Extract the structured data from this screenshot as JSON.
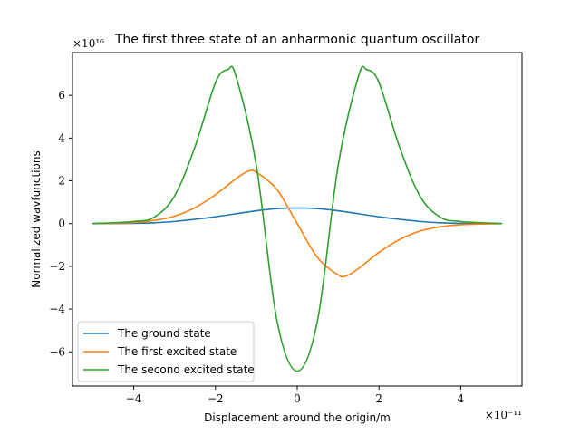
{
  "chart_data": {
    "type": "line",
    "title": "The first three state of an anharmonic quantum oscillator",
    "xlabel": "Displacement around the origin/m",
    "ylabel": "Normalized wavfunctions",
    "x_offset_text": "×10⁻¹¹",
    "y_offset_text": "×10¹⁶",
    "x_scale_note": "x values are in units of 1e-11 m",
    "y_scale_note": "y values are in units of 1e16",
    "xlim": [
      -5.5,
      5.5
    ],
    "ylim": [
      -7.6,
      8.0
    ],
    "xticks": [
      -4,
      -2,
      0,
      2,
      4
    ],
    "yticks": [
      -6,
      -4,
      -2,
      0,
      2,
      4,
      6
    ],
    "xtick_labels": [
      "−4",
      "−2",
      "0",
      "2",
      "4"
    ],
    "ytick_labels": [
      "−6",
      "−4",
      "−2",
      "0",
      "2",
      "4",
      "6"
    ],
    "grid": false,
    "legend_position": "lower-left",
    "series": [
      {
        "name": "The ground state",
        "color": "#1f77b4",
        "x": [
          -5,
          -4,
          -3.5,
          -3,
          -2.5,
          -2,
          -1.5,
          -1,
          -0.5,
          0,
          0.5,
          1,
          1.5,
          2,
          2.5,
          3,
          3.5,
          4,
          5
        ],
        "y": [
          0.0,
          0.01,
          0.04,
          0.1,
          0.2,
          0.32,
          0.46,
          0.6,
          0.7,
          0.73,
          0.7,
          0.6,
          0.46,
          0.32,
          0.2,
          0.1,
          0.04,
          0.01,
          0.0
        ]
      },
      {
        "name": "The first excited state",
        "color": "#ff7f0e",
        "x": [
          -5,
          -4,
          -3.5,
          -3,
          -2.5,
          -2,
          -1.5,
          -1.2,
          -1,
          -0.5,
          0,
          0.5,
          1,
          1.2,
          1.5,
          2,
          2.5,
          3,
          3.5,
          4,
          5
        ],
        "y": [
          0.0,
          0.05,
          0.15,
          0.35,
          0.75,
          1.35,
          2.1,
          2.45,
          2.4,
          1.6,
          0.0,
          -1.6,
          -2.4,
          -2.45,
          -2.1,
          -1.35,
          -0.75,
          -0.35,
          -0.15,
          -0.05,
          0.0
        ]
      },
      {
        "name": "The second excited state",
        "color": "#2ca02c",
        "x": [
          -5,
          -4,
          -3.5,
          -3,
          -2.5,
          -2,
          -1.7,
          -1.5,
          -1,
          -0.5,
          0,
          0.5,
          1,
          1.5,
          1.7,
          2,
          2.5,
          3,
          3.5,
          4,
          5
        ],
        "y": [
          0.0,
          0.1,
          0.3,
          1.3,
          3.6,
          6.6,
          7.2,
          6.9,
          2.7,
          -4.5,
          -6.9,
          -4.5,
          2.7,
          6.9,
          7.2,
          6.6,
          3.6,
          1.3,
          0.3,
          0.1,
          0.0
        ]
      }
    ]
  }
}
